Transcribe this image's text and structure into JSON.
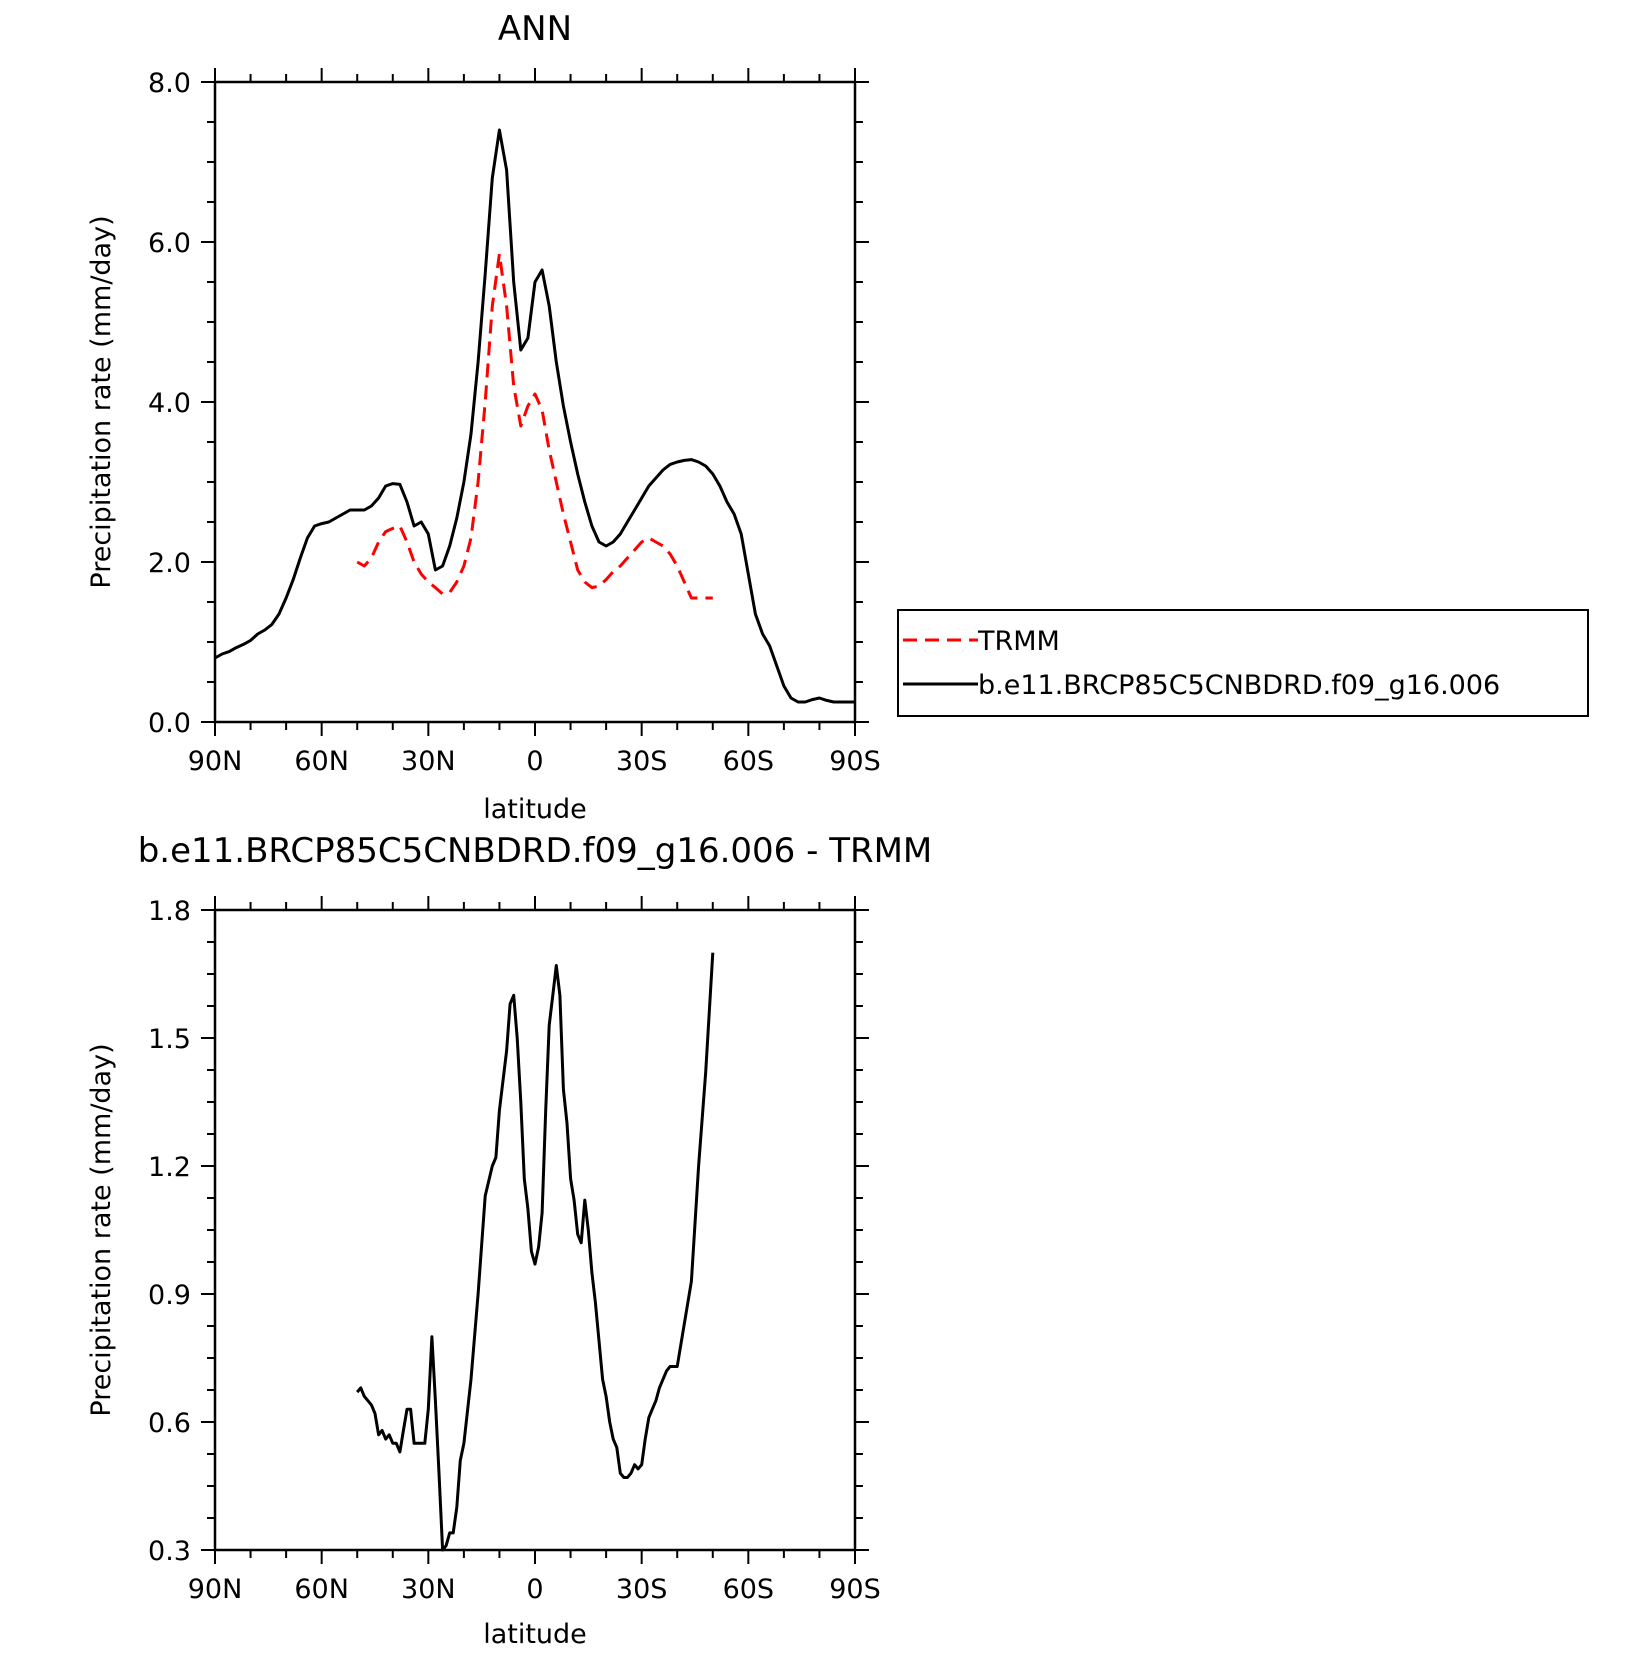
{
  "chart_data": [
    {
      "type": "line",
      "title": "ANN",
      "xlabel": "latitude",
      "ylabel": "Precipitation rate (mm/day)",
      "xlim": [
        90,
        -90
      ],
      "ylim": [
        0.0,
        8.0
      ],
      "xticks": [
        90,
        60,
        30,
        0,
        -30,
        -60,
        -90
      ],
      "xtick_labels": [
        "90N",
        "60N",
        "30N",
        "0",
        "30S",
        "60S",
        "90S"
      ],
      "yticks": [
        0.0,
        2.0,
        4.0,
        6.0,
        8.0
      ],
      "ytick_labels": [
        "0.0",
        "2.0",
        "4.0",
        "6.0",
        "8.0"
      ],
      "grid": false,
      "legend_position": "right",
      "series": [
        {
          "name": "TRMM",
          "color": "#ff0000",
          "dash": "dashed",
          "x": [
            50,
            48,
            46,
            44,
            42,
            40,
            38,
            36,
            34,
            32,
            30,
            28,
            26,
            24,
            22,
            20,
            18,
            16,
            14,
            12,
            10,
            8,
            6,
            4,
            2,
            0,
            -2,
            -4,
            -6,
            -8,
            -10,
            -12,
            -14,
            -16,
            -18,
            -20,
            -22,
            -24,
            -26,
            -28,
            -30,
            -32,
            -34,
            -36,
            -38,
            -40,
            -42,
            -44,
            -46,
            -48,
            -50
          ],
          "y": [
            2.0,
            1.95,
            2.05,
            2.25,
            2.38,
            2.42,
            2.45,
            2.25,
            2.0,
            1.85,
            1.75,
            1.68,
            1.6,
            1.62,
            1.75,
            1.95,
            2.3,
            3.0,
            4.0,
            5.2,
            5.85,
            5.2,
            4.2,
            3.7,
            3.95,
            4.1,
            3.9,
            3.4,
            3.0,
            2.6,
            2.25,
            1.9,
            1.75,
            1.68,
            1.7,
            1.78,
            1.88,
            1.95,
            2.05,
            2.15,
            2.25,
            2.3,
            2.25,
            2.2,
            2.1,
            1.95,
            1.75,
            1.55,
            1.55,
            1.55,
            1.55
          ]
        },
        {
          "name": "b.e11.BRCP85C5CNBDRD.f09_g16.006",
          "color": "#000000",
          "dash": "solid",
          "x": [
            90,
            88,
            86,
            84,
            82,
            80,
            78,
            76,
            74,
            72,
            70,
            68,
            66,
            64,
            62,
            60,
            58,
            56,
            54,
            52,
            50,
            48,
            46,
            44,
            42,
            40,
            38,
            36,
            34,
            32,
            30,
            28,
            26,
            24,
            22,
            20,
            18,
            16,
            14,
            12,
            10,
            8,
            6,
            4,
            2,
            0,
            -2,
            -4,
            -6,
            -8,
            -10,
            -12,
            -14,
            -16,
            -18,
            -20,
            -22,
            -24,
            -26,
            -28,
            -30,
            -32,
            -34,
            -36,
            -38,
            -40,
            -42,
            -44,
            -46,
            -48,
            -50,
            -52,
            -54,
            -56,
            -58,
            -60,
            -62,
            -64,
            -66,
            -68,
            -70,
            -72,
            -74,
            -76,
            -78,
            -80,
            -82,
            -84,
            -86,
            -88,
            -90
          ],
          "y": [
            0.8,
            0.85,
            0.88,
            0.93,
            0.97,
            1.02,
            1.1,
            1.15,
            1.22,
            1.35,
            1.55,
            1.78,
            2.05,
            2.3,
            2.45,
            2.48,
            2.5,
            2.55,
            2.6,
            2.65,
            2.65,
            2.65,
            2.7,
            2.8,
            2.95,
            2.98,
            2.97,
            2.75,
            2.45,
            2.5,
            2.35,
            1.9,
            1.95,
            2.2,
            2.55,
            3.0,
            3.6,
            4.5,
            5.6,
            6.8,
            7.4,
            6.9,
            5.5,
            4.65,
            4.8,
            5.5,
            5.65,
            5.2,
            4.5,
            3.95,
            3.5,
            3.1,
            2.75,
            2.45,
            2.25,
            2.2,
            2.25,
            2.35,
            2.5,
            2.65,
            2.8,
            2.95,
            3.05,
            3.15,
            3.22,
            3.25,
            3.27,
            3.28,
            3.25,
            3.2,
            3.1,
            2.95,
            2.75,
            2.6,
            2.35,
            1.85,
            1.35,
            1.1,
            0.95,
            0.7,
            0.45,
            0.3,
            0.25,
            0.25,
            0.28,
            0.3,
            0.27,
            0.25,
            0.25,
            0.25,
            0.25
          ]
        }
      ]
    },
    {
      "type": "line",
      "title": "b.e11.BRCP85C5CNBDRD.f09_g16.006 - TRMM",
      "xlabel": "latitude",
      "ylabel": "Precipitation rate (mm/day)",
      "xlim": [
        90,
        -90
      ],
      "ylim": [
        0.3,
        1.8
      ],
      "xticks": [
        90,
        60,
        30,
        0,
        -30,
        -60,
        -90
      ],
      "xtick_labels": [
        "90N",
        "60N",
        "30N",
        "0",
        "30S",
        "60S",
        "90S"
      ],
      "yticks": [
        0.3,
        0.6,
        0.9,
        1.2,
        1.5,
        1.8
      ],
      "ytick_labels": [
        "0.3",
        "0.6",
        "0.9",
        "1.2",
        "1.5",
        "1.8"
      ],
      "grid": false,
      "series": [
        {
          "color": "#000000",
          "dash": "solid",
          "x": [
            50,
            49,
            48,
            47,
            46,
            45,
            44,
            43,
            42,
            41,
            40,
            39,
            38,
            37,
            36,
            35,
            34,
            33,
            32,
            31,
            30,
            29,
            28,
            27,
            26,
            25,
            24,
            23,
            22,
            21,
            20,
            18,
            16,
            14,
            12,
            11,
            10,
            9,
            8,
            7,
            6,
            5,
            4,
            3,
            2,
            1,
            0,
            -1,
            -2,
            -3,
            -4,
            -5,
            -6,
            -7,
            -8,
            -9,
            -10,
            -11,
            -12,
            -13,
            -14,
            -15,
            -16,
            -17,
            -18,
            -19,
            -20,
            -21,
            -22,
            -23,
            -24,
            -25,
            -26,
            -27,
            -28,
            -29,
            -30,
            -31,
            -32,
            -33,
            -34,
            -35,
            -36,
            -37,
            -38,
            -39,
            -40,
            -42,
            -44,
            -46,
            -48,
            -50
          ],
          "y": [
            0.67,
            0.68,
            0.66,
            0.65,
            0.64,
            0.62,
            0.57,
            0.58,
            0.56,
            0.57,
            0.55,
            0.55,
            0.53,
            0.58,
            0.63,
            0.63,
            0.55,
            0.55,
            0.55,
            0.55,
            0.63,
            0.8,
            0.65,
            0.48,
            0.3,
            0.31,
            0.34,
            0.34,
            0.4,
            0.51,
            0.55,
            0.7,
            0.9,
            1.13,
            1.2,
            1.22,
            1.33,
            1.4,
            1.47,
            1.58,
            1.6,
            1.5,
            1.35,
            1.17,
            1.1,
            1.0,
            0.97,
            1.01,
            1.09,
            1.33,
            1.53,
            1.6,
            1.67,
            1.6,
            1.38,
            1.3,
            1.17,
            1.12,
            1.04,
            1.02,
            1.12,
            1.05,
            0.95,
            0.88,
            0.79,
            0.7,
            0.66,
            0.6,
            0.56,
            0.54,
            0.48,
            0.47,
            0.47,
            0.48,
            0.5,
            0.49,
            0.5,
            0.56,
            0.61,
            0.63,
            0.65,
            0.68,
            0.7,
            0.72,
            0.73,
            0.73,
            0.73,
            0.83,
            0.93,
            1.2,
            1.42,
            1.7
          ]
        }
      ]
    }
  ]
}
